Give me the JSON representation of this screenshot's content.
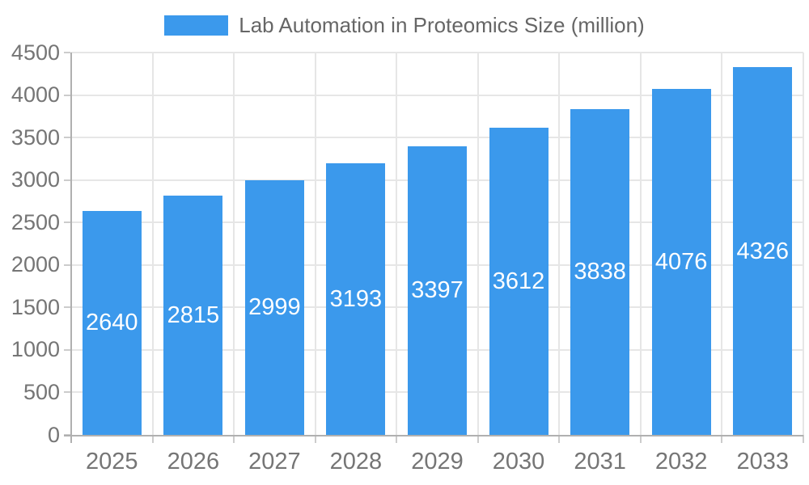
{
  "legend": {
    "label": "Lab Automation in Proteomics Size (million)"
  },
  "chart_data": {
    "type": "bar",
    "title": "Lab Automation in Proteomics Size (million)",
    "categories": [
      "2025",
      "2026",
      "2027",
      "2028",
      "2029",
      "2030",
      "2031",
      "2032",
      "2033"
    ],
    "series": [
      {
        "name": "Lab Automation in Proteomics Size (million)",
        "values": [
          2640,
          2815,
          2999,
          3193,
          3397,
          3612,
          3838,
          4076,
          4326
        ]
      }
    ],
    "value_labels": [
      "2640",
      "2815",
      "2999",
      "3193",
      "3397",
      "3612",
      "3838",
      "4076",
      "4326"
    ],
    "xlabel": "",
    "ylabel": "",
    "ylim": [
      0,
      4500
    ],
    "y_ticks": [
      0,
      500,
      1000,
      1500,
      2000,
      2500,
      3000,
      3500,
      4000,
      4500
    ],
    "grid": true,
    "legend_position": "top"
  },
  "colors": {
    "bar": "#3b99ec",
    "value_label": "#ffffff",
    "axis_text": "#757575",
    "legend_text": "#666666",
    "gridline": "#e6e6e6",
    "axis_line": "#b0b0b0",
    "tick": "#cccccc",
    "background": "#ffffff"
  }
}
